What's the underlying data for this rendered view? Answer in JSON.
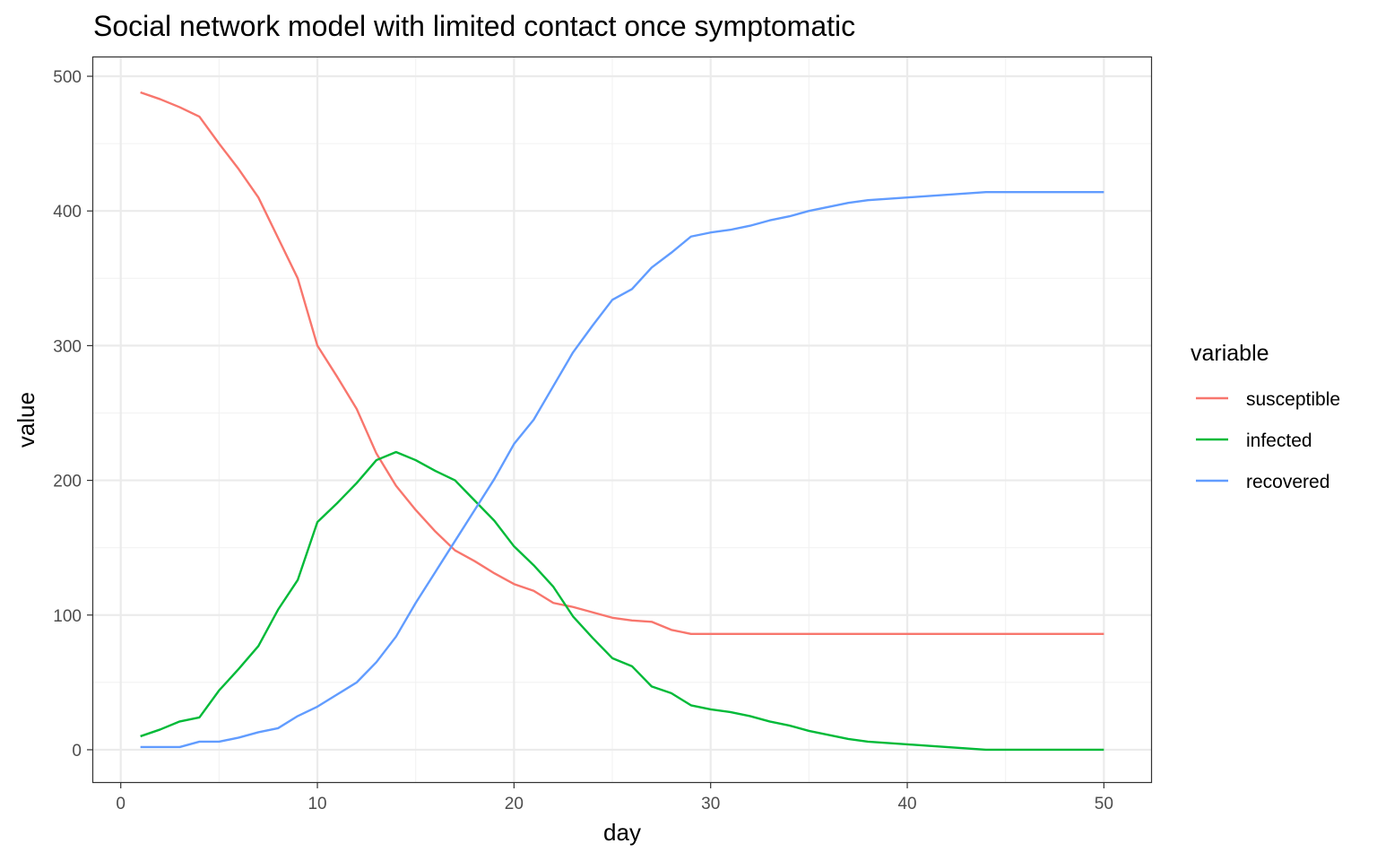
{
  "chart_data": {
    "type": "line",
    "title": "Social network model with limited contact once symptomatic",
    "xlabel": "day",
    "ylabel": "value",
    "xlim": [
      -1.4,
      52.4
    ],
    "ylim": [
      -24,
      514
    ],
    "x_ticks": [
      0,
      10,
      20,
      30,
      40,
      50
    ],
    "y_ticks": [
      0,
      100,
      200,
      300,
      400,
      500
    ],
    "x_tick_labels": [
      "0",
      "10",
      "20",
      "30",
      "40",
      "50"
    ],
    "y_tick_labels": [
      "0",
      "100",
      "200",
      "300",
      "400",
      "500"
    ],
    "x_minor_ticks": [
      5,
      15,
      25,
      35,
      45
    ],
    "y_minor_ticks": [
      50,
      150,
      250,
      350,
      450
    ],
    "grid": true,
    "legend": {
      "title": "variable",
      "placement": "right"
    },
    "x": [
      1,
      2,
      3,
      4,
      5,
      6,
      7,
      8,
      9,
      10,
      11,
      12,
      13,
      14,
      15,
      16,
      17,
      18,
      19,
      20,
      21,
      22,
      23,
      24,
      25,
      26,
      27,
      28,
      29,
      30,
      31,
      32,
      33,
      34,
      35,
      36,
      37,
      38,
      39,
      40,
      41,
      42,
      43,
      44,
      45,
      46,
      47,
      48,
      49,
      50
    ],
    "series": [
      {
        "name": "susceptible",
        "color": "#f8766d",
        "values": [
          488,
          483,
          477,
          470,
          450,
          431,
          410,
          380,
          350,
          300,
          277,
          253,
          220,
          196,
          178,
          162,
          148,
          140,
          131,
          123,
          118,
          109,
          106,
          102,
          98,
          96,
          95,
          89,
          86,
          86,
          86,
          86,
          86,
          86,
          86,
          86,
          86,
          86,
          86,
          86,
          86,
          86,
          86,
          86,
          86,
          86,
          86,
          86,
          86,
          86
        ]
      },
      {
        "name": "infected",
        "color": "#00ba38",
        "values": [
          10,
          15,
          21,
          24,
          44,
          60,
          77,
          104,
          126,
          169,
          183,
          198,
          215,
          221,
          215,
          207,
          200,
          185,
          170,
          151,
          137,
          121,
          99,
          83,
          68,
          62,
          47,
          42,
          33,
          30,
          28,
          25,
          21,
          18,
          14,
          11,
          8,
          6,
          5,
          4,
          3,
          2,
          1,
          0,
          0,
          0,
          0,
          0,
          0,
          0
        ]
      },
      {
        "name": "recovered",
        "color": "#619cff",
        "values": [
          2,
          2,
          2,
          6,
          6,
          9,
          13,
          16,
          25,
          32,
          41,
          50,
          65,
          84,
          109,
          132,
          155,
          178,
          201,
          227,
          245,
          270,
          295,
          315,
          334,
          342,
          358,
          369,
          381,
          384,
          386,
          389,
          393,
          396,
          400,
          403,
          406,
          408,
          409,
          410,
          411,
          412,
          413,
          414,
          414,
          414,
          414,
          414,
          414,
          414
        ]
      }
    ]
  }
}
